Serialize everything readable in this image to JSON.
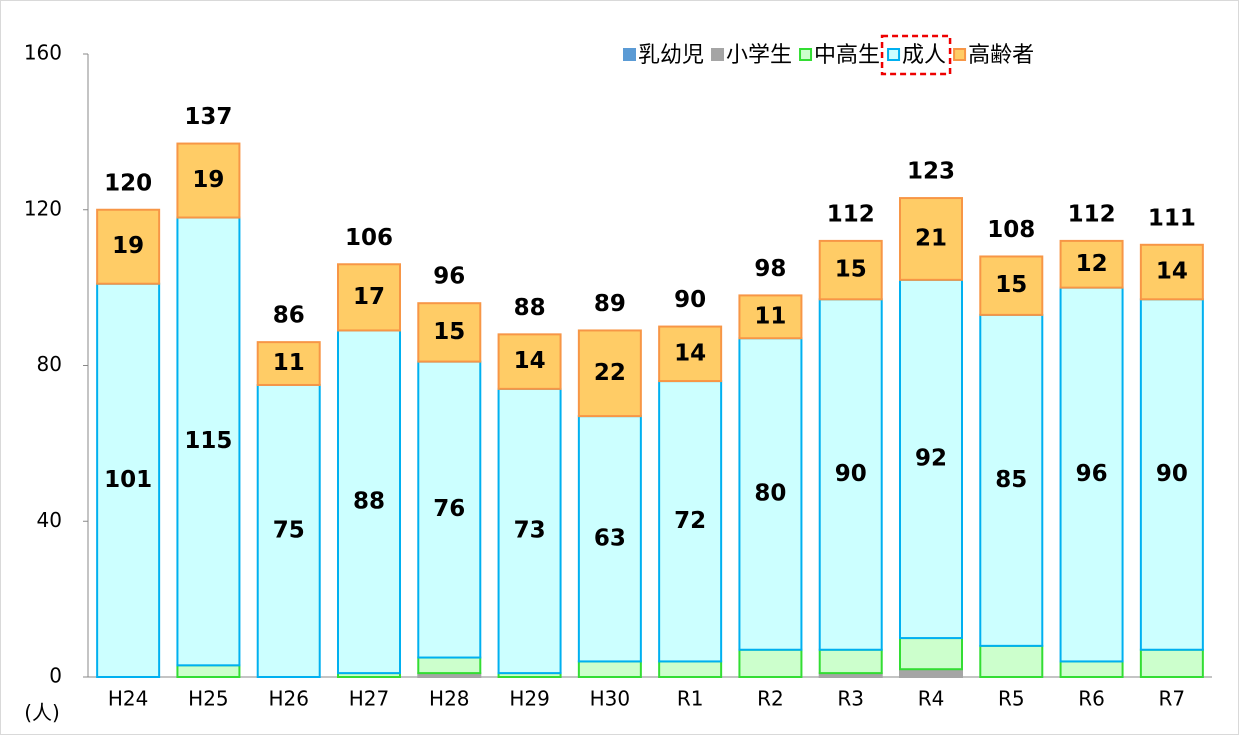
{
  "chart_data": {
    "type": "stacked_bar",
    "y_label": "(人)",
    "categories": [
      "H24",
      "H25",
      "H26",
      "H27",
      "H28",
      "H29",
      "H30",
      "R1",
      "R2",
      "R3",
      "R4",
      "R5",
      "R6",
      "R7"
    ],
    "series": [
      {
        "name": "乳幼児",
        "color": "#5b9bd5",
        "stroke": "#5b9bd5",
        "show_labels": false,
        "values": [
          0,
          0,
          0,
          0,
          0,
          0,
          0,
          0,
          0,
          0,
          0,
          0,
          0,
          0
        ]
      },
      {
        "name": "小学生",
        "color": "#a5a5a5",
        "stroke": "#a5a5a5",
        "show_labels": false,
        "values": [
          0,
          0,
          0,
          0,
          1,
          0,
          0,
          0,
          0,
          1,
          2,
          0,
          0,
          0
        ]
      },
      {
        "name": "中高生",
        "color": "#ccffcc",
        "stroke": "#33dd33",
        "show_labels": false,
        "values": [
          0,
          3,
          0,
          1,
          4,
          1,
          4,
          4,
          7,
          6,
          8,
          8,
          4,
          7
        ]
      },
      {
        "name": "成人",
        "color": "#ccffff",
        "stroke": "#00b0f0",
        "show_labels": true,
        "values": [
          101,
          115,
          75,
          88,
          76,
          73,
          63,
          72,
          80,
          90,
          92,
          85,
          96,
          90
        ]
      },
      {
        "name": "高齢者",
        "color": "#ffcc66",
        "stroke": "#f79646",
        "show_labels": true,
        "values": [
          19,
          19,
          11,
          17,
          15,
          14,
          22,
          14,
          11,
          15,
          21,
          15,
          12,
          14
        ]
      }
    ],
    "totals": [
      120,
      137,
      86,
      106,
      96,
      88,
      89,
      90,
      98,
      112,
      123,
      108,
      112,
      111
    ],
    "highlight_series": 3,
    "ylim": [
      0,
      160
    ],
    "yticks": [
      0,
      40,
      80,
      120,
      160
    ],
    "grid": false
  }
}
